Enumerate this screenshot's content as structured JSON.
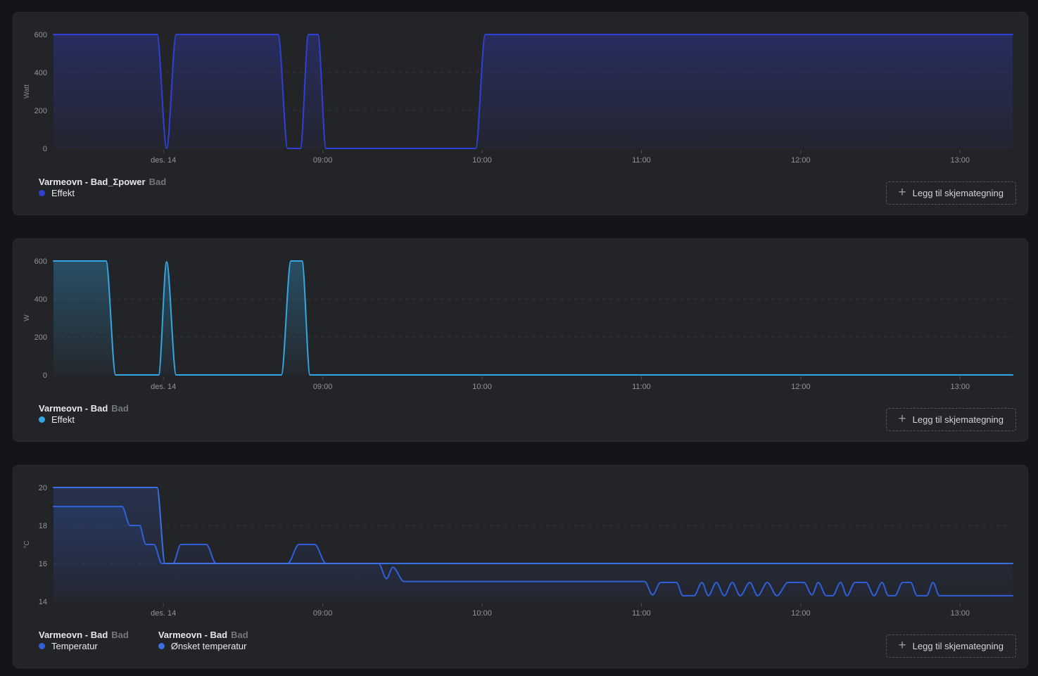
{
  "app": {
    "add_button_label": "Legg til skjemategning",
    "plus_icon": "+"
  },
  "panels": [
    {
      "legends": [
        {
          "title": "Varmeovn - Bad_Σpower",
          "subtitle": "Bad",
          "items": [
            {
              "label": "Effekt"
            }
          ]
        }
      ]
    },
    {
      "legends": [
        {
          "title": "Varmeovn - Bad",
          "subtitle": "Bad",
          "items": [
            {
              "label": "Effekt"
            }
          ]
        }
      ]
    },
    {
      "legends": [
        {
          "title": "Varmeovn - Bad",
          "subtitle": "Bad",
          "items": [
            {
              "label": "Temperatur"
            }
          ]
        },
        {
          "title": "Varmeovn - Bad",
          "subtitle": "Bad",
          "items": [
            {
              "label": "Ønsket temperatur"
            }
          ]
        }
      ]
    }
  ],
  "chart_data": [
    {
      "type": "area",
      "title": "Varmeovn - Bad_Σpower Bad",
      "ylabel": "Watt",
      "ylim": [
        0,
        600
      ],
      "yticks": [
        {
          "v": 0,
          "label": "0"
        },
        {
          "v": 200,
          "label": "200",
          "grid": true
        },
        {
          "v": 400,
          "label": "400",
          "grid": true
        },
        {
          "v": 600,
          "label": "600"
        }
      ],
      "x_unit": "hour_of_day",
      "xlim": [
        7.31,
        13.33
      ],
      "xticks": [
        {
          "x": 8,
          "label": "des. 14"
        },
        {
          "x": 9,
          "label": "09:00"
        },
        {
          "x": 10,
          "label": "10:00"
        },
        {
          "x": 11,
          "label": "11:00"
        },
        {
          "x": 12,
          "label": "12:00"
        },
        {
          "x": 13,
          "label": "13:00"
        }
      ],
      "grid": "dashed",
      "legend_position": "bottom-left",
      "series": [
        {
          "name": "Effekt",
          "color": "#3040d6",
          "fill_top": "rgba(47,62,200,0.34)",
          "fill_bottom": "rgba(47,62,200,0.05)",
          "points": [
            [
              7.31,
              600
            ],
            [
              7.96,
              600
            ],
            [
              8.02,
              0
            ],
            [
              8.08,
              600
            ],
            [
              8.72,
              600
            ],
            [
              8.78,
              0
            ],
            [
              8.86,
              0
            ],
            [
              8.91,
              600
            ],
            [
              8.97,
              600
            ],
            [
              9.02,
              0
            ],
            [
              9.96,
              0
            ],
            [
              10.02,
              600
            ],
            [
              13.33,
              600
            ]
          ]
        }
      ]
    },
    {
      "type": "area",
      "title": "Varmeovn - Bad Bad",
      "ylabel": "W",
      "ylim": [
        0,
        600
      ],
      "yticks": [
        {
          "v": 0,
          "label": "0"
        },
        {
          "v": 200,
          "label": "200",
          "grid": true
        },
        {
          "v": 400,
          "label": "400",
          "grid": true
        },
        {
          "v": 600,
          "label": "600"
        }
      ],
      "x_unit": "hour_of_day",
      "xlim": [
        7.31,
        13.33
      ],
      "xticks": [
        {
          "x": 8,
          "label": "des. 14"
        },
        {
          "x": 9,
          "label": "09:00"
        },
        {
          "x": 10,
          "label": "10:00"
        },
        {
          "x": 11,
          "label": "11:00"
        },
        {
          "x": 12,
          "label": "12:00"
        },
        {
          "x": 13,
          "label": "13:00"
        }
      ],
      "grid": "dashed",
      "legend_position": "bottom-left",
      "series": [
        {
          "name": "Effekt",
          "color": "#34a7e2",
          "fill_top": "rgba(52,167,226,0.32)",
          "fill_bottom": "rgba(52,167,226,0.03)",
          "points": [
            [
              7.31,
              600
            ],
            [
              7.64,
              600
            ],
            [
              7.7,
              0
            ],
            [
              7.97,
              0
            ],
            [
              8.02,
              595
            ],
            [
              8.08,
              0
            ],
            [
              8.74,
              0
            ],
            [
              8.8,
              600
            ],
            [
              8.87,
              600
            ],
            [
              8.92,
              0
            ],
            [
              13.33,
              0
            ]
          ]
        }
      ]
    },
    {
      "type": "area",
      "title": "Varmeovn - Bad Bad",
      "ylabel": "°C",
      "ylim": [
        14,
        20
      ],
      "yticks": [
        {
          "v": 14,
          "label": "14"
        },
        {
          "v": 16,
          "label": "16",
          "grid": true
        },
        {
          "v": 18,
          "label": "18",
          "grid": true
        },
        {
          "v": 20,
          "label": "20"
        }
      ],
      "x_unit": "hour_of_day",
      "xlim": [
        7.31,
        13.33
      ],
      "xticks": [
        {
          "x": 8,
          "label": "des. 14"
        },
        {
          "x": 9,
          "label": "09:00"
        },
        {
          "x": 10,
          "label": "10:00"
        },
        {
          "x": 11,
          "label": "11:00"
        },
        {
          "x": 12,
          "label": "12:00"
        },
        {
          "x": 13,
          "label": "13:00"
        }
      ],
      "grid": "dashed",
      "legend_position": "bottom-left",
      "series": [
        {
          "name": "Temperatur",
          "color": "#2f5ed8",
          "fill_top": "rgba(45,90,215,0.20)",
          "fill_bottom": "rgba(45,90,215,0.02)",
          "points": [
            [
              7.31,
              19
            ],
            [
              7.74,
              19
            ],
            [
              7.79,
              18
            ],
            [
              7.85,
              18
            ],
            [
              7.89,
              17
            ],
            [
              7.94,
              17
            ],
            [
              7.99,
              16
            ],
            [
              8.06,
              16
            ],
            [
              8.11,
              17
            ],
            [
              8.27,
              17
            ],
            [
              8.33,
              16
            ],
            [
              8.78,
              16
            ],
            [
              8.85,
              17
            ],
            [
              8.95,
              17
            ],
            [
              9.02,
              16
            ],
            [
              9.35,
              16
            ],
            [
              9.4,
              15.2
            ],
            [
              9.44,
              15.8
            ],
            [
              9.51,
              15.05
            ],
            [
              11.02,
              15.05
            ],
            [
              11.07,
              14.35
            ],
            [
              11.12,
              15.0
            ],
            [
              11.22,
              15.0
            ],
            [
              11.26,
              14.3
            ],
            [
              11.33,
              14.3
            ],
            [
              11.38,
              15.0
            ],
            [
              11.42,
              14.3
            ],
            [
              11.47,
              15.0
            ],
            [
              11.52,
              14.3
            ],
            [
              11.57,
              15.0
            ],
            [
              11.62,
              14.3
            ],
            [
              11.68,
              15.0
            ],
            [
              11.73,
              14.3
            ],
            [
              11.79,
              15.0
            ],
            [
              11.85,
              14.3
            ],
            [
              11.92,
              15.0
            ],
            [
              12.02,
              15.0
            ],
            [
              12.07,
              14.35
            ],
            [
              12.11,
              15.0
            ],
            [
              12.16,
              14.3
            ],
            [
              12.2,
              14.3
            ],
            [
              12.25,
              15.0
            ],
            [
              12.29,
              14.3
            ],
            [
              12.34,
              15.0
            ],
            [
              12.41,
              15.0
            ],
            [
              12.46,
              14.3
            ],
            [
              12.51,
              15.0
            ],
            [
              12.55,
              14.3
            ],
            [
              12.59,
              14.3
            ],
            [
              12.64,
              15.0
            ],
            [
              12.69,
              15.0
            ],
            [
              12.73,
              14.3
            ],
            [
              12.79,
              14.3
            ],
            [
              12.83,
              15.0
            ],
            [
              12.87,
              14.3
            ],
            [
              13.33,
              14.3
            ]
          ]
        },
        {
          "name": "Ønsket temperatur",
          "color": "#3b6fe6",
          "fill_top": "rgba(55,105,225,0.20)",
          "fill_bottom": "rgba(55,105,225,0.02)",
          "points": [
            [
              7.31,
              20
            ],
            [
              7.96,
              20
            ],
            [
              8.01,
              16
            ],
            [
              13.33,
              16
            ]
          ]
        }
      ]
    }
  ],
  "style": {
    "page_bg": "#141518",
    "panel_bg": "#232428",
    "grid_color": "#3c3e44",
    "tick_label_color": "#92959b",
    "axis_unit_color": "#83868b",
    "legend_title_color": "#e6e8ea",
    "legend_subtitle_color": "#74777c"
  }
}
